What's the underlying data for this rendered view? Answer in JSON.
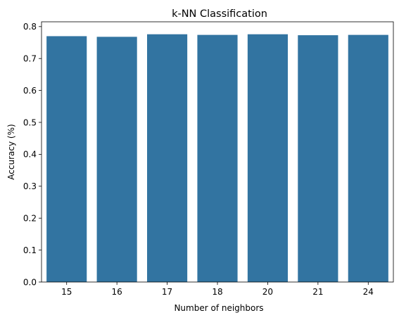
{
  "chart_data": {
    "type": "bar",
    "title": "k-NN Classification",
    "xlabel": "Number of neighbors",
    "ylabel": "Accuracy (%)",
    "categories": [
      "15",
      "16",
      "17",
      "18",
      "20",
      "21",
      "24"
    ],
    "values": [
      0.77,
      0.768,
      0.776,
      0.774,
      0.776,
      0.773,
      0.774
    ],
    "ylim": [
      0,
      0.815
    ],
    "yticks": [
      "0.0",
      "0.1",
      "0.2",
      "0.3",
      "0.4",
      "0.5",
      "0.6",
      "0.7",
      "0.8"
    ],
    "bar_color": "#3274a1",
    "grid": false
  }
}
